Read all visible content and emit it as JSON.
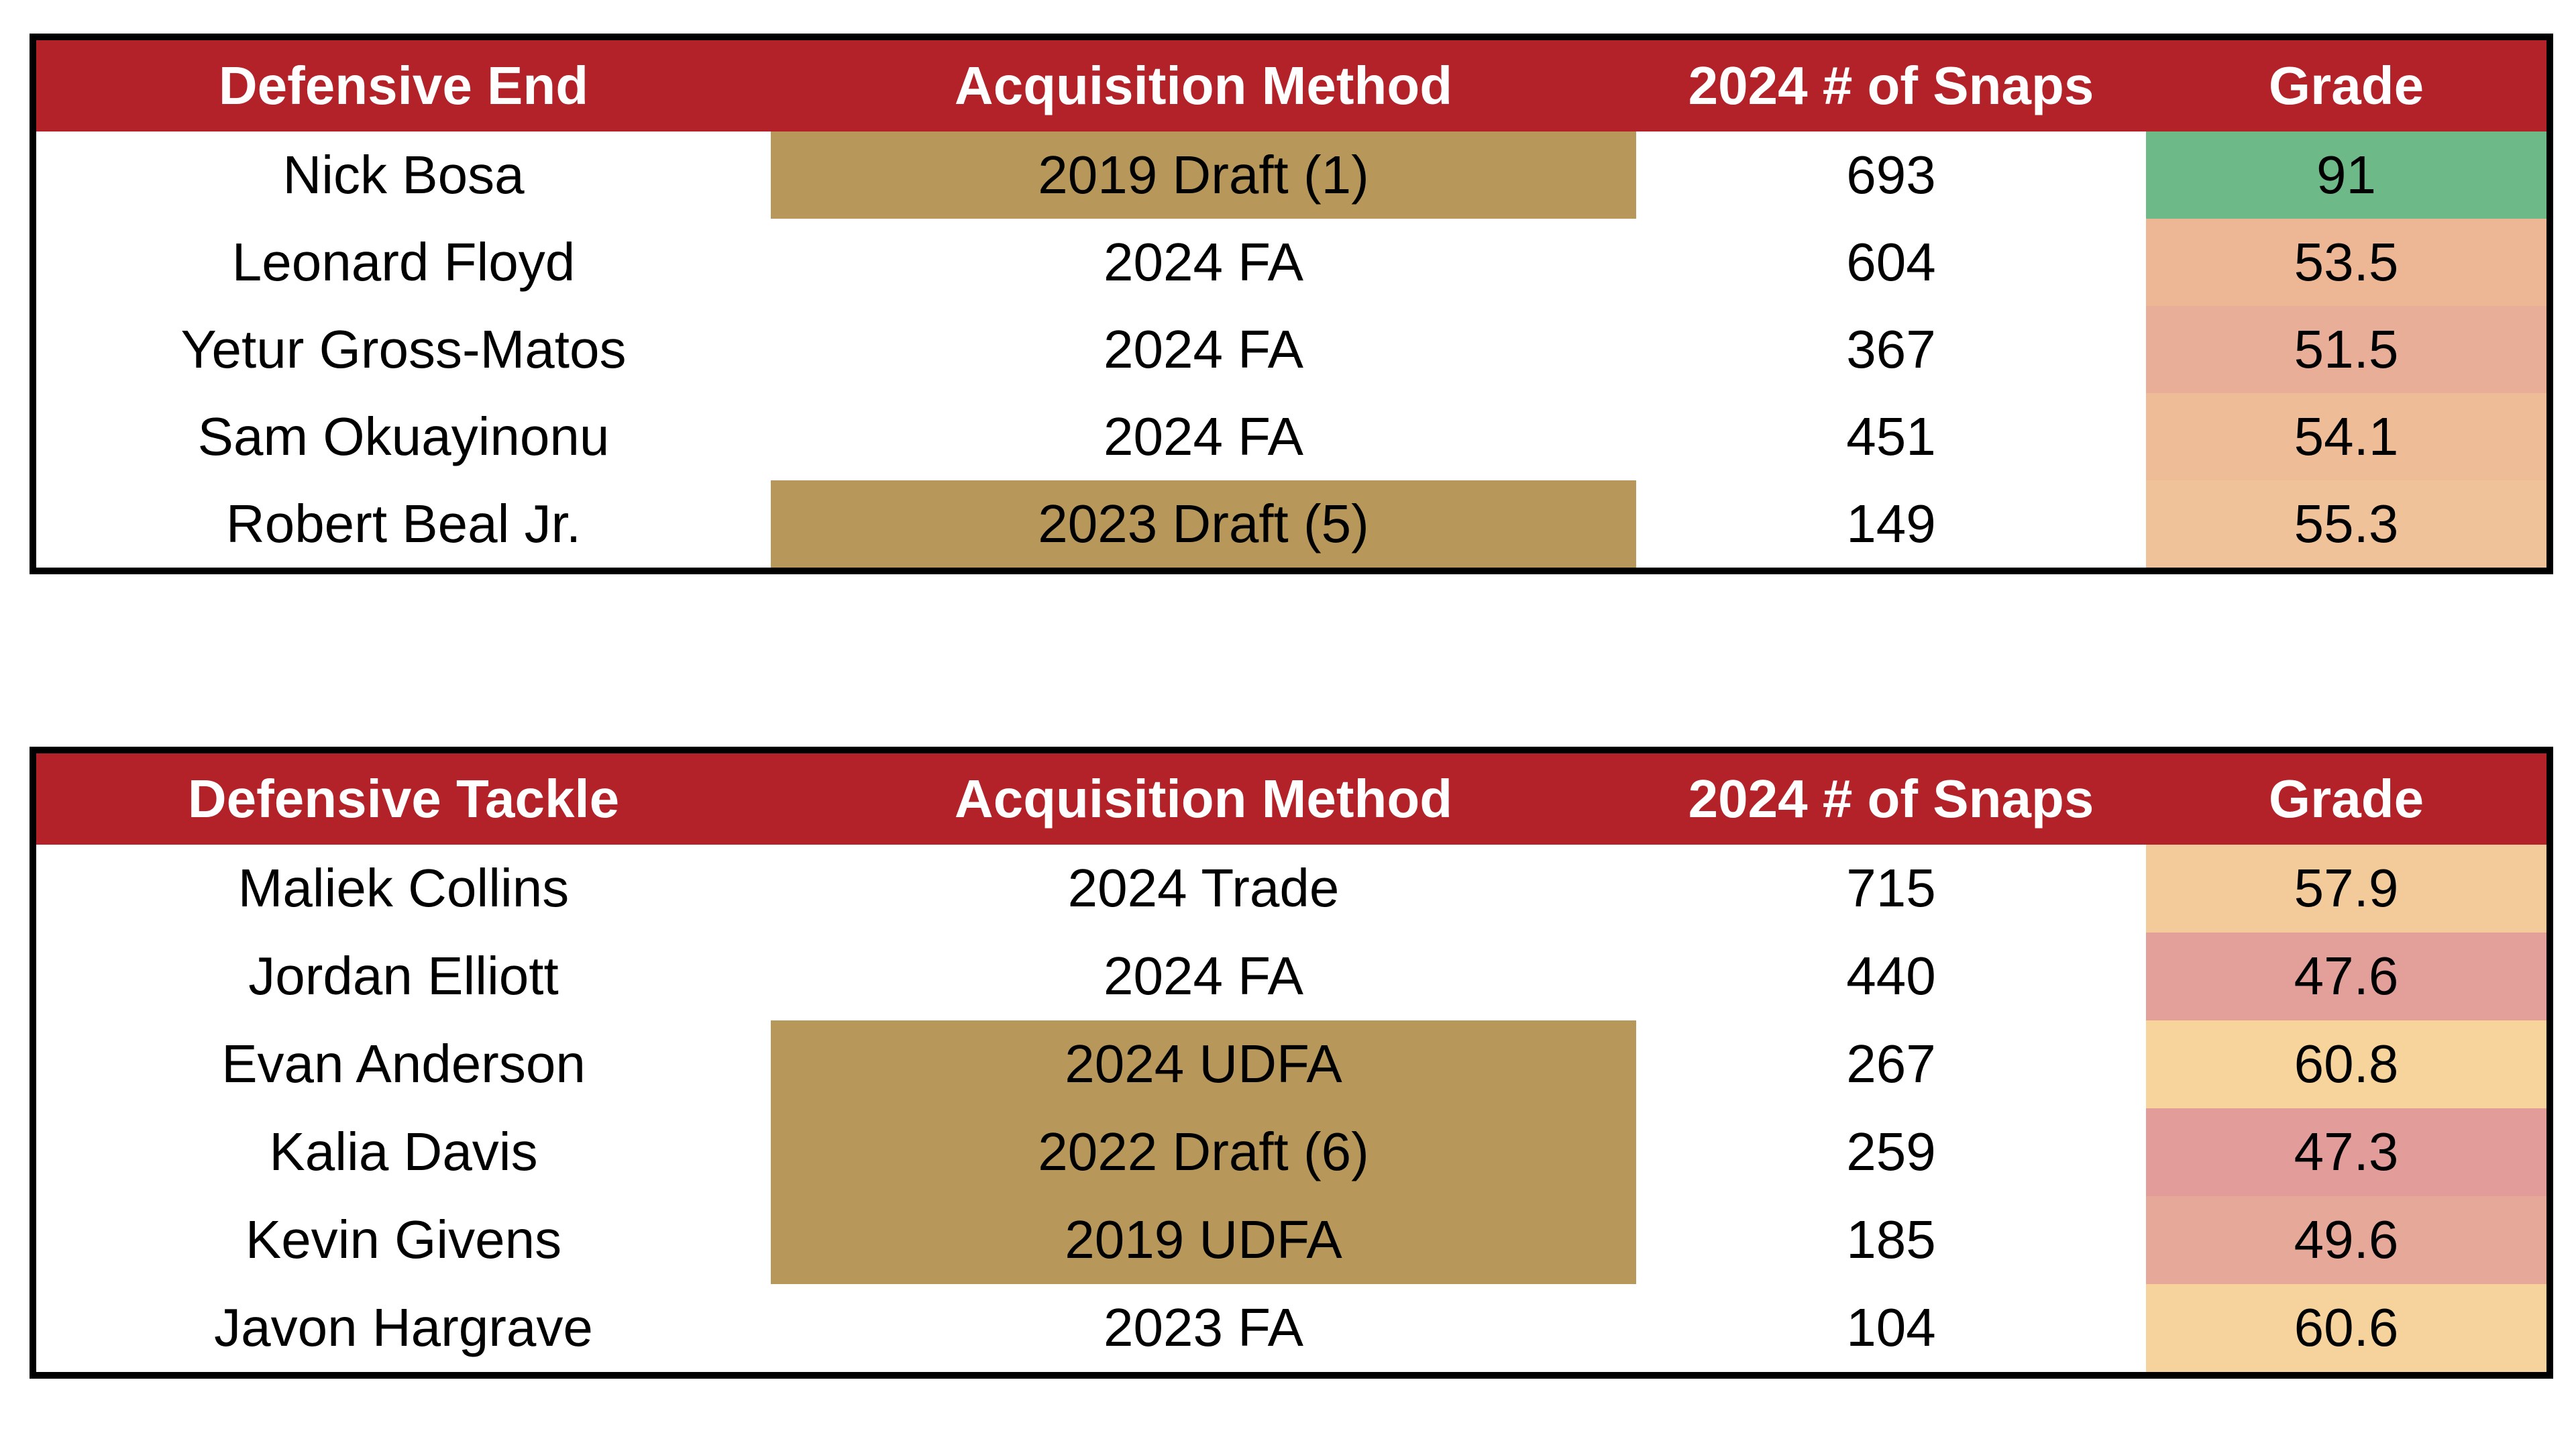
{
  "colors": {
    "header_bg": "#b32229",
    "header_text": "#ffffff",
    "draft_highlight": "#b8985a",
    "border": "#000000"
  },
  "defensive_end_table": {
    "headers": [
      "Defensive End",
      "Acquisition Method",
      "2024 # of Snaps",
      "Grade"
    ],
    "rows": [
      {
        "player": "Nick Bosa",
        "acquisition": "2019 Draft (1)",
        "snaps": "693",
        "grade": "91",
        "acquisition_highlighted": true,
        "grade_color": "#6dba88"
      },
      {
        "player": "Leonard Floyd",
        "acquisition": "2024 FA",
        "snaps": "604",
        "grade": "53.5",
        "acquisition_highlighted": false,
        "grade_color": "#edb796"
      },
      {
        "player": "Yetur Gross-Matos",
        "acquisition": "2024 FA",
        "snaps": "367",
        "grade": "51.5",
        "acquisition_highlighted": false,
        "grade_color": "#e8ae97"
      },
      {
        "player": "Sam Okuayinonu",
        "acquisition": "2024 FA",
        "snaps": "451",
        "grade": "54.1",
        "acquisition_highlighted": false,
        "grade_color": "#efbc98"
      },
      {
        "player": "Robert Beal Jr.",
        "acquisition": "2023 Draft (5)",
        "snaps": "149",
        "grade": "55.3",
        "acquisition_highlighted": true,
        "grade_color": "#f0c299"
      }
    ]
  },
  "defensive_tackle_table": {
    "headers": [
      "Defensive Tackle",
      "Acquisition Method",
      "2024 # of Snaps",
      "Grade"
    ],
    "rows": [
      {
        "player": "Maliek Collins",
        "acquisition": "2024 Trade",
        "snaps": "715",
        "grade": "57.9",
        "acquisition_highlighted": false,
        "grade_color": "#f3cb9a"
      },
      {
        "player": "Jordan Elliott",
        "acquisition": "2024 FA",
        "snaps": "440",
        "grade": "47.6",
        "acquisition_highlighted": false,
        "grade_color": "#e3a09a"
      },
      {
        "player": "Evan Anderson",
        "acquisition": "2024 UDFA",
        "snaps": "267",
        "grade": "60.8",
        "acquisition_highlighted": true,
        "grade_color": "#f6d49c"
      },
      {
        "player": "Kalia Davis",
        "acquisition": "2022 Draft (6)",
        "snaps": "259",
        "grade": "47.3",
        "acquisition_highlighted": true,
        "grade_color": "#e29c99"
      },
      {
        "player": "Kevin Givens",
        "acquisition": "2019 UDFA",
        "snaps": "185",
        "grade": "49.6",
        "acquisition_highlighted": true,
        "grade_color": "#e6a898"
      },
      {
        "player": "Javon Hargrave",
        "acquisition": "2023 FA",
        "snaps": "104",
        "grade": "60.6",
        "acquisition_highlighted": false,
        "grade_color": "#f6d39c"
      }
    ]
  }
}
